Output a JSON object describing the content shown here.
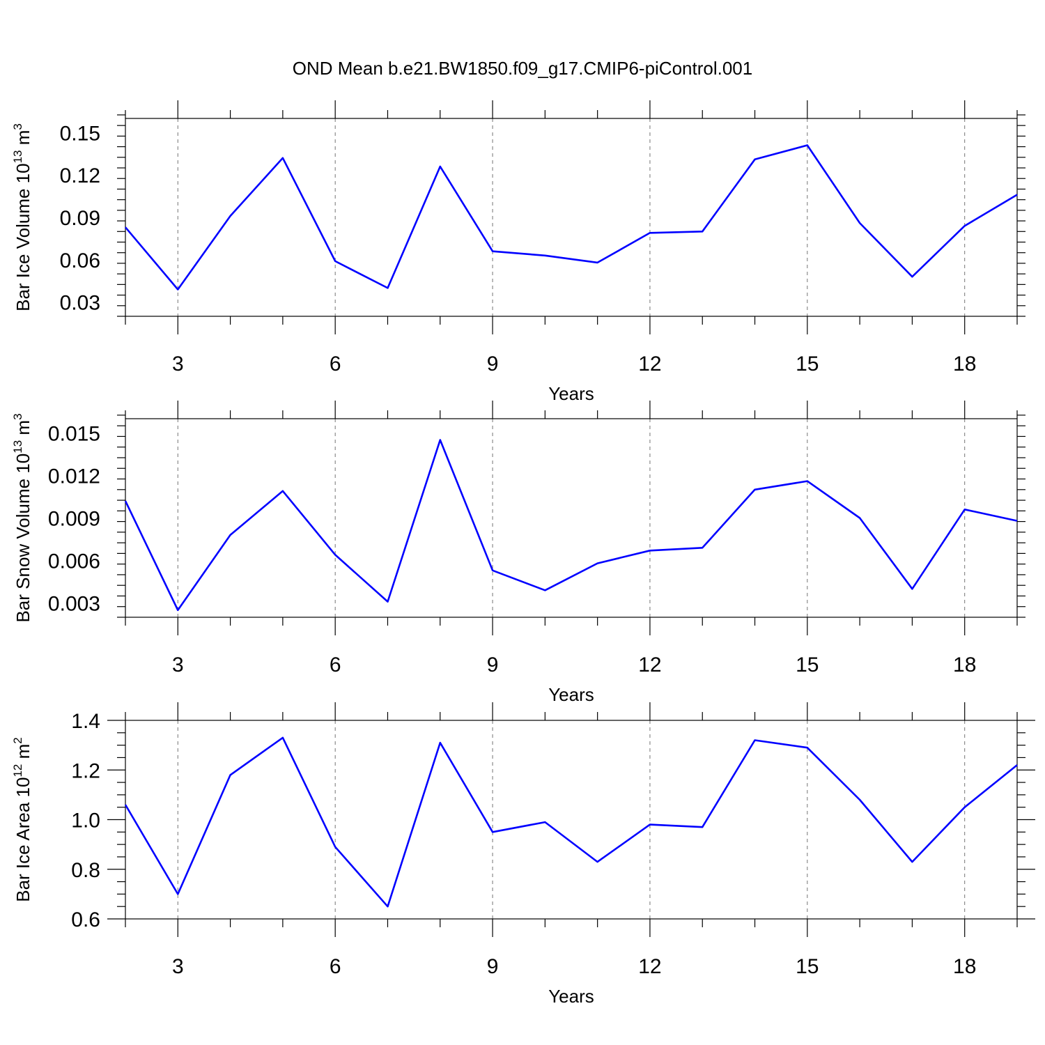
{
  "title": "OND Mean b.e21.BW1850.f09_g17.CMIP6-piControl.001",
  "colors": {
    "line": "#0000ff",
    "axis": "#000000"
  },
  "chart_data": [
    {
      "type": "line",
      "name": "ice-volume",
      "ylabel_main": "Bar Ice Volume 10",
      "ylabel_exp": "13",
      "ylabel_unit": " m",
      "ylabel_unit_exp": "3",
      "xlabel": "Years",
      "xlim": [
        2,
        19
      ],
      "ylim": [
        0.02,
        0.16
      ],
      "xticks": [
        3,
        6,
        9,
        12,
        15,
        18
      ],
      "xtick_labels": [
        "3",
        "6",
        "9",
        "12",
        "15",
        "18"
      ],
      "yticks": [
        0.03,
        0.06,
        0.09,
        0.12,
        0.15
      ],
      "ytick_labels": [
        "0.03",
        "0.06",
        "0.09",
        "0.12",
        "0.15"
      ],
      "x": [
        2,
        3,
        4,
        5,
        6,
        7,
        8,
        9,
        10,
        11,
        12,
        13,
        14,
        15,
        16,
        17,
        18,
        19
      ],
      "y": [
        0.083,
        0.039,
        0.091,
        0.132,
        0.059,
        0.04,
        0.126,
        0.066,
        0.063,
        0.058,
        0.079,
        0.08,
        0.131,
        0.141,
        0.086,
        0.048,
        0.084,
        0.106
      ]
    },
    {
      "type": "line",
      "name": "snow-volume",
      "ylabel_main": "Bar Snow Volume 10",
      "ylabel_exp": "13",
      "ylabel_unit": " m",
      "ylabel_unit_exp": "3",
      "xlabel": "Years",
      "xlim": [
        2,
        19
      ],
      "ylim": [
        0.002,
        0.016
      ],
      "xticks": [
        3,
        6,
        9,
        12,
        15,
        18
      ],
      "xtick_labels": [
        "3",
        "6",
        "9",
        "12",
        "15",
        "18"
      ],
      "yticks": [
        0.003,
        0.006,
        0.009,
        0.012,
        0.015
      ],
      "ytick_labels": [
        "0.003",
        "0.006",
        "0.009",
        "0.012",
        "0.015"
      ],
      "x": [
        2,
        3,
        4,
        5,
        6,
        7,
        8,
        9,
        10,
        11,
        12,
        13,
        14,
        15,
        16,
        17,
        18,
        19
      ],
      "y": [
        0.0102,
        0.0025,
        0.0078,
        0.0109,
        0.0064,
        0.0031,
        0.0145,
        0.0053,
        0.0039,
        0.0058,
        0.0067,
        0.0069,
        0.011,
        0.0116,
        0.009,
        0.004,
        0.0096,
        0.0088
      ]
    },
    {
      "type": "line",
      "name": "ice-area",
      "ylabel_main": "Bar Ice Area 10",
      "ylabel_exp": "12",
      "ylabel_unit": " m",
      "ylabel_unit_exp": "2",
      "xlabel": "Years",
      "xlim": [
        2,
        19
      ],
      "ylim": [
        0.6,
        1.4
      ],
      "xticks": [
        3,
        6,
        9,
        12,
        15,
        18
      ],
      "xtick_labels": [
        "3",
        "6",
        "9",
        "12",
        "15",
        "18"
      ],
      "yticks": [
        0.6,
        0.8,
        1.0,
        1.2,
        1.4
      ],
      "ytick_labels": [
        "0.6",
        "0.8",
        "1.0",
        "1.2",
        "1.4"
      ],
      "x": [
        2,
        3,
        4,
        5,
        6,
        7,
        8,
        9,
        10,
        11,
        12,
        13,
        14,
        15,
        16,
        17,
        18,
        19
      ],
      "y": [
        1.06,
        0.7,
        1.18,
        1.33,
        0.89,
        0.65,
        1.31,
        0.95,
        0.99,
        0.83,
        0.98,
        0.97,
        1.32,
        1.29,
        1.08,
        0.83,
        1.05,
        1.22
      ]
    }
  ]
}
